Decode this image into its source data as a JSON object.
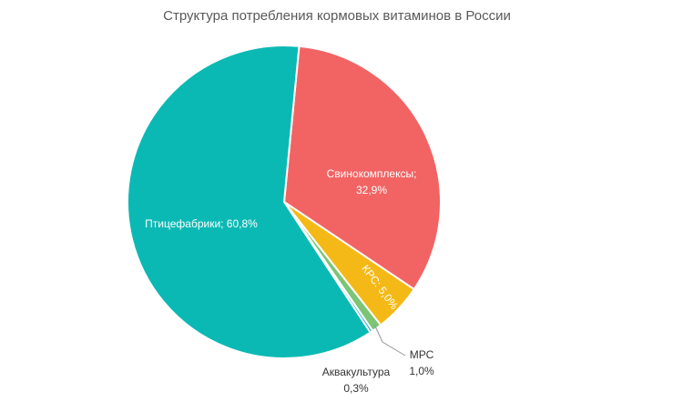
{
  "chart_data": {
    "type": "pie",
    "title": "Структура потребления кормовых витаминов в России",
    "slices": [
      {
        "label": "Свинокомплексы",
        "value": 32.9,
        "value_text": "32,9%",
        "color": "#f26464"
      },
      {
        "label": "КРС",
        "value": 5.0,
        "value_text": "5,0%",
        "color": "#f4b916"
      },
      {
        "label": "МРС",
        "value": 1.0,
        "value_text": "1,0%",
        "color": "#7cc576"
      },
      {
        "label": "Аквакультура",
        "value": 0.3,
        "value_text": "0,3%",
        "color": "#2fa7c9"
      },
      {
        "label": "Птицефабрики",
        "value": 60.8,
        "value_text": "60,8%",
        "color": "#0bb9b4"
      }
    ]
  }
}
